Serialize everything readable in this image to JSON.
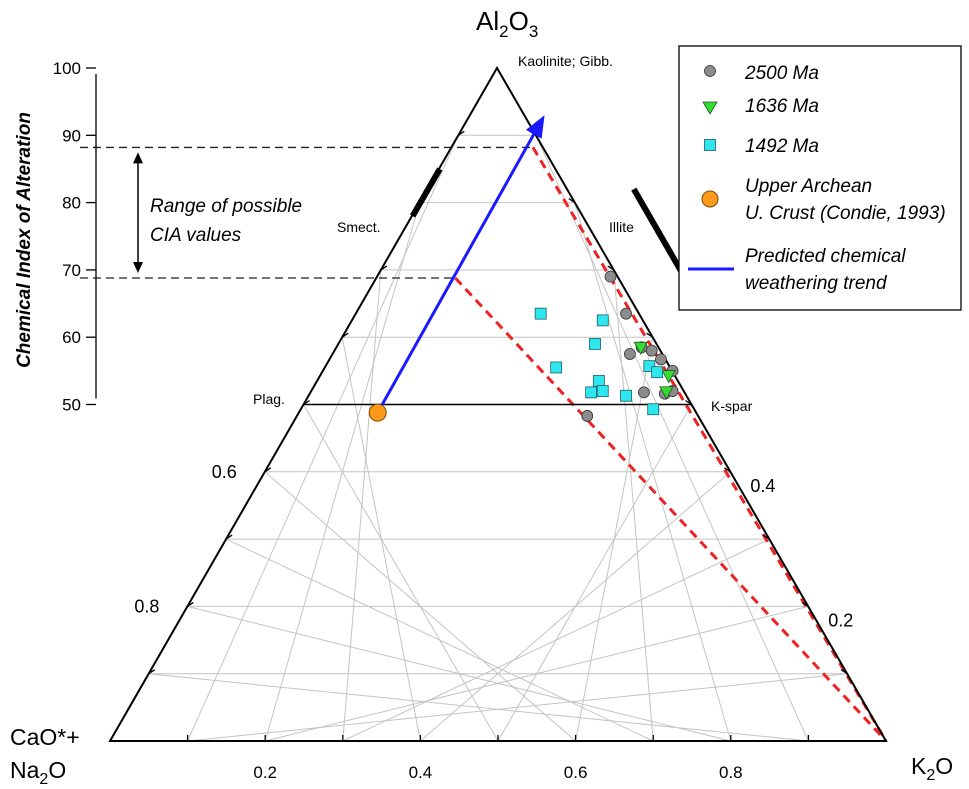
{
  "chart_data": {
    "type": "scatter",
    "subtype": "ternary",
    "apex_labels": {
      "top": {
        "main": "Al",
        "sub1": "2",
        "mid": "O",
        "sub2": "3"
      },
      "left": {
        "line1": "CaO*+",
        "line2_main": "Na",
        "line2_sub": "2",
        "line2_end": "O"
      },
      "right": {
        "main": "K",
        "sub": "2",
        "end": "O"
      }
    },
    "cia_axis": {
      "label": "Chemical Index of Alteration",
      "range": [
        0,
        100
      ],
      "ticks": [
        {
          "label": "50",
          "v": 50
        },
        {
          "label": "60",
          "v": 60
        },
        {
          "label": "70",
          "v": 70
        },
        {
          "label": "80",
          "v": 80
        },
        {
          "label": "90",
          "v": 90
        },
        {
          "label": "100",
          "v": 100
        }
      ]
    },
    "bottom_ticks": [
      {
        "label": "0.2",
        "v": 0.2
      },
      {
        "label": "0.4",
        "v": 0.4
      },
      {
        "label": "0.6",
        "v": 0.6
      },
      {
        "label": "0.8",
        "v": 0.8
      }
    ],
    "left_ticks": [
      {
        "label": "0.6",
        "v": 0.6
      },
      {
        "label": "0.8",
        "v": 0.8
      }
    ],
    "right_ticks": [
      {
        "label": "0.4",
        "v": 0.4
      },
      {
        "label": "0.2",
        "v": 0.2
      }
    ],
    "grid": true,
    "mineral_labels": {
      "kaolinite": "Kaolinite; Gibb.",
      "smectite": "Smect.",
      "illite": "Illite",
      "plagioclase": "Plag.",
      "kspar": "K-spar"
    },
    "cia_range_annotation": {
      "line1": "Range of possible",
      "line2": "CIA values",
      "min": 68.8,
      "max": 88.2
    },
    "series": [
      {
        "name": "2500 Ma",
        "marker": "circle",
        "color": "#8c8c8c",
        "points": [
          [
            64.5,
            69
          ],
          [
            66.5,
            63.5
          ],
          [
            67.0,
            57.5
          ],
          [
            68.5,
            58.5
          ],
          [
            69.8,
            58
          ],
          [
            71.0,
            56.7
          ],
          [
            72.5,
            55
          ],
          [
            68.8,
            51.8
          ],
          [
            71.5,
            51.6
          ],
          [
            72.5,
            52
          ],
          [
            61.5,
            48.3
          ]
        ]
      },
      {
        "name": "1636 Ma",
        "marker": "triangle",
        "color": "#33dd33",
        "points": [
          [
            68.4,
            58.5
          ],
          [
            72.0,
            54.3
          ],
          [
            71.7,
            51.9
          ]
        ]
      },
      {
        "name": "1492 Ma",
        "marker": "square",
        "color": "#2ee6ee",
        "points": [
          [
            55.5,
            63.5
          ],
          [
            63.5,
            62.5
          ],
          [
            62.5,
            59
          ],
          [
            57.5,
            55.5
          ],
          [
            69.5,
            55.7
          ],
          [
            70.5,
            54.8
          ],
          [
            63.0,
            53.5
          ],
          [
            62.0,
            51.8
          ],
          [
            63.5,
            52
          ],
          [
            66.5,
            51.3
          ],
          [
            70.0,
            49.3
          ]
        ]
      },
      {
        "name": "Upper Archean\nU. Crust (Condie, 1993)",
        "marker": "circle-large",
        "color": "#ff9a1a",
        "points": [
          [
            34.5,
            48.8
          ]
        ]
      }
    ],
    "trend": {
      "name": "Predicted chemical weathering trend",
      "color": "#1a1aff",
      "from": [
        34.5,
        48.8
      ],
      "to": [
        56.0,
        93.0
      ]
    },
    "legend": {
      "position": "top-right",
      "entries": [
        {
          "label": "2500 Ma",
          "marker": "circle",
          "color": "#8c8c8c"
        },
        {
          "label": "1636 Ma",
          "marker": "triangle",
          "color": "#33dd33"
        },
        {
          "label": "1492 Ma",
          "marker": "square",
          "color": "#2ee6ee"
        },
        {
          "label": "Upper Archean",
          "label2": "U. Crust (Condie, 1993)",
          "marker": "circle-large",
          "color": "#ff9a1a"
        },
        {
          "label": "Predicted chemical",
          "label2": "weathering trend",
          "marker": "line",
          "color": "#1a1aff"
        }
      ]
    }
  }
}
